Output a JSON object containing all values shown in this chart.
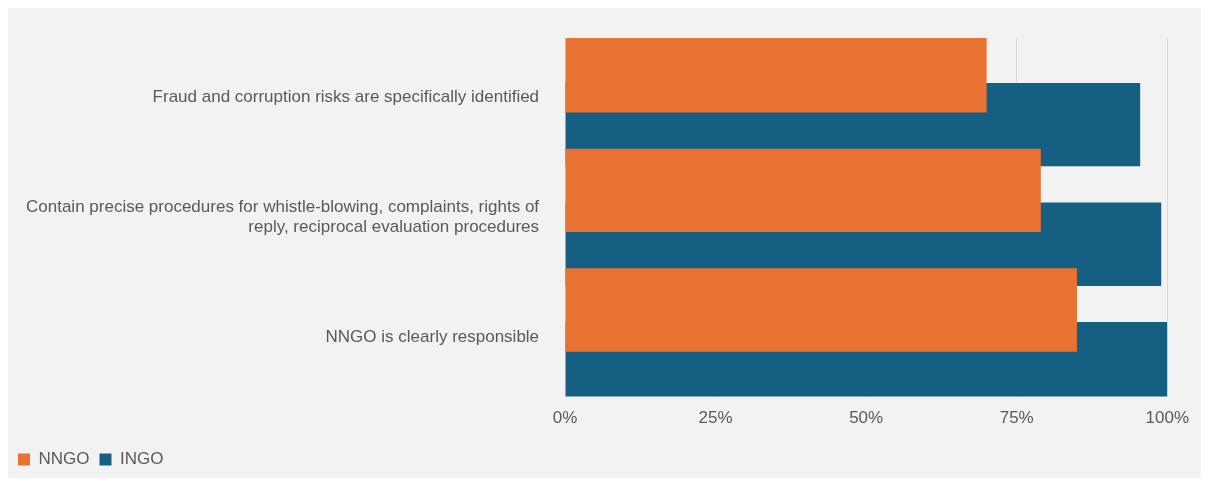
{
  "chart_data": {
    "type": "bar",
    "orientation": "horizontal",
    "categories": [
      "Fraud and corruption risks are specifically identified",
      "Contain precise procedures for whistle-blowing, complaints, rights of reply, reciprocal evaluation procedures",
      "NNGO is clearly responsible"
    ],
    "series": [
      {
        "name": "NNGO",
        "color": "#e97132",
        "values": [
          70,
          79,
          85
        ]
      },
      {
        "name": "INGO",
        "color": "#156082",
        "values": [
          95.5,
          99,
          100
        ]
      }
    ],
    "xlim": [
      0,
      100
    ],
    "xticks": [
      {
        "value": 0,
        "label": "0%"
      },
      {
        "value": 25,
        "label": "25%"
      },
      {
        "value": 50,
        "label": "50%"
      },
      {
        "value": 75,
        "label": "75%"
      },
      {
        "value": 100,
        "label": "100%"
      }
    ],
    "grid": "x",
    "legend": "bottom left"
  }
}
